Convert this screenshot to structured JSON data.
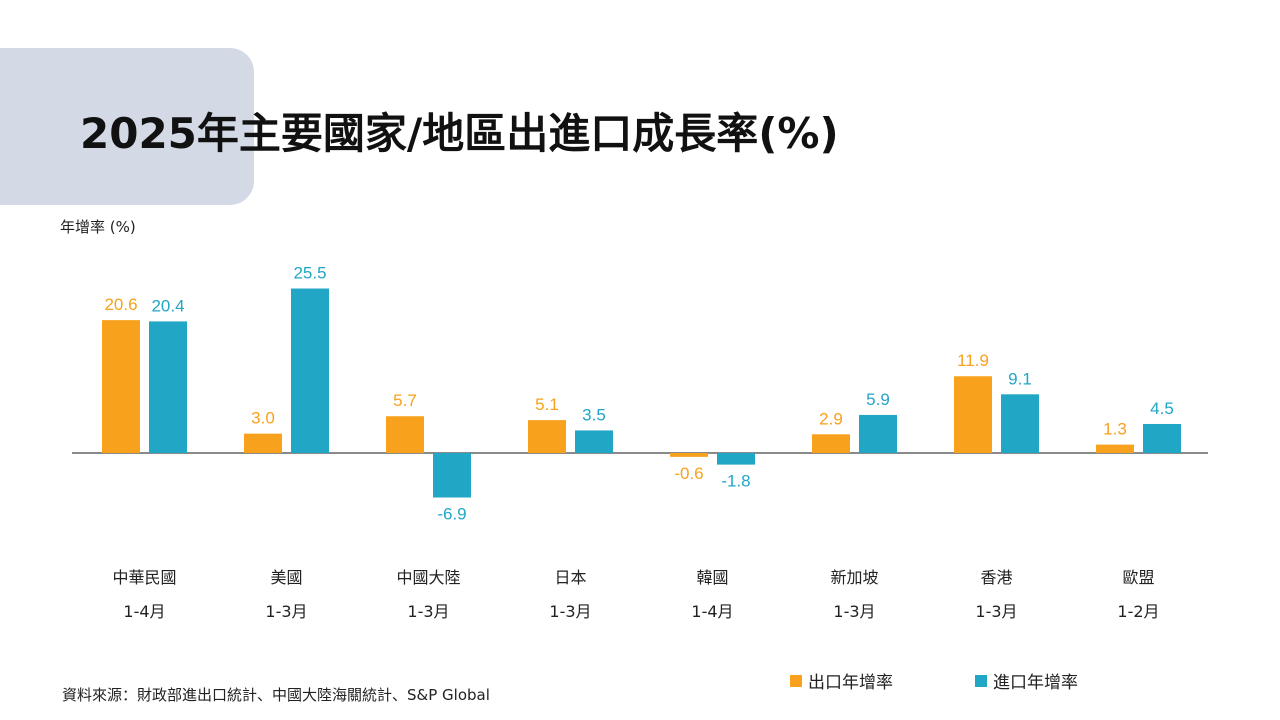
{
  "title": "2025年主要國家/地區出進口成長率(%)",
  "source": "資料來源：財政部進出口統計、中國大陸海關統計、S&P Global",
  "colors": {
    "export": "#f7a11c",
    "import": "#21a6c6",
    "title_band": "#d4d9e6"
  },
  "chart_data": {
    "type": "bar",
    "ylabel": "年增率 (%)",
    "categories": [
      "中華民國",
      "美國",
      "中國大陸",
      "日本",
      "韓國",
      "新加坡",
      "香港",
      "歐盟"
    ],
    "periods": [
      "1-4月",
      "1-3月",
      "1-3月",
      "1-3月",
      "1-4月",
      "1-3月",
      "1-3月",
      "1-2月"
    ],
    "series": [
      {
        "name": "出口年增率",
        "values": [
          20.6,
          3.0,
          5.7,
          5.1,
          -0.6,
          2.9,
          11.9,
          1.3
        ]
      },
      {
        "name": "進口年增率",
        "values": [
          20.4,
          25.5,
          -6.9,
          3.5,
          -1.8,
          5.9,
          9.1,
          4.5
        ]
      }
    ],
    "value_labels": {
      "export": [
        "20.6",
        "3.0",
        "5.7",
        "5.1",
        "-0.6",
        "2.9",
        "11.9",
        "1.3"
      ],
      "import": [
        "20.4",
        "25.5",
        "-6.9",
        "3.5",
        "-1.8",
        "5.9",
        "9.1",
        "4.5"
      ]
    },
    "legend_position": "bottom-right",
    "grid": false
  }
}
